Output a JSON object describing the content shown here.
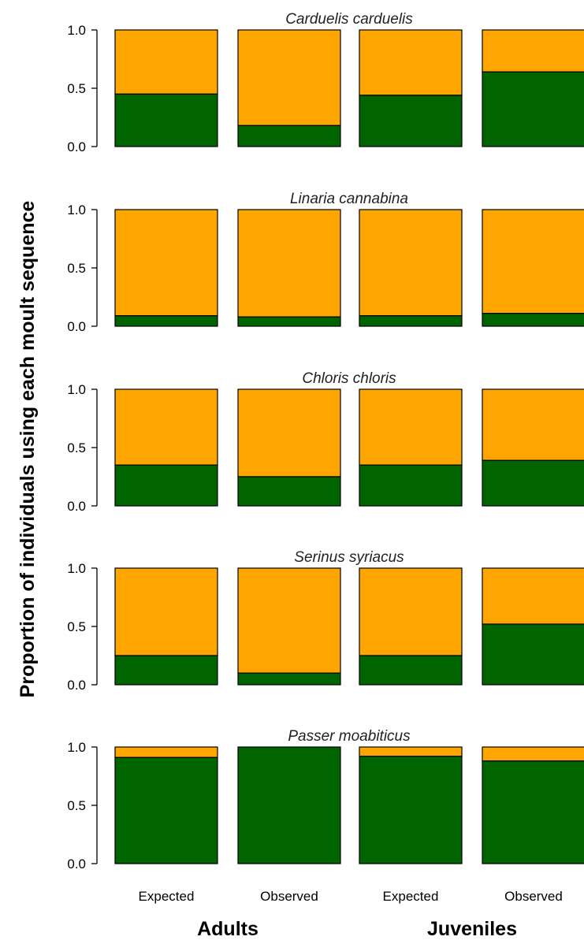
{
  "chart_data": {
    "type": "bar",
    "stacked": true,
    "ylabel": "Proportion of individuals using each moult sequence",
    "ylim": [
      0,
      1
    ],
    "yticks": [
      "0.0",
      "0.5",
      "1.0"
    ],
    "categories": [
      "Expected",
      "Observed",
      "Expected",
      "Observed"
    ],
    "groups": [
      "Adults",
      "Juveniles"
    ],
    "colors": {
      "lower": "#006400",
      "upper": "#FFA500"
    },
    "panels": [
      {
        "title": "Carduelis carduelis",
        "values": [
          0.45,
          0.18,
          0.44,
          0.64
        ]
      },
      {
        "title": "Linaria cannabina",
        "values": [
          0.09,
          0.08,
          0.09,
          0.11
        ]
      },
      {
        "title": "Chloris chloris",
        "values": [
          0.35,
          0.25,
          0.35,
          0.39
        ]
      },
      {
        "title": "Serinus syriacus",
        "values": [
          0.25,
          0.1,
          0.25,
          0.52
        ]
      },
      {
        "title": "Passer moabiticus",
        "values": [
          0.91,
          1.0,
          0.92,
          0.88
        ]
      }
    ]
  }
}
